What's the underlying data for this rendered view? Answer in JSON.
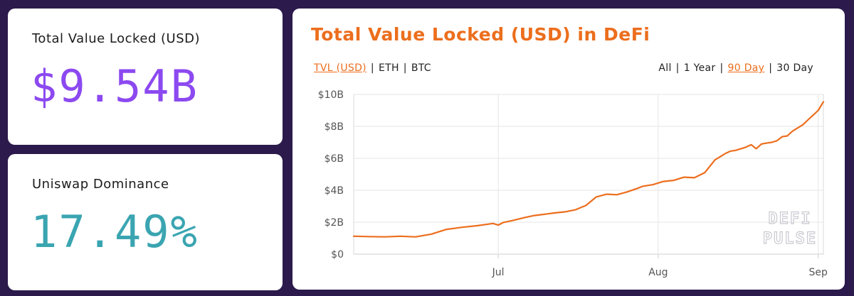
{
  "stats": {
    "tvl": {
      "label": "Total Value Locked (USD)",
      "value": "$9.54B"
    },
    "dominance": {
      "label": "Uniswap Dominance",
      "value": "17.49%"
    }
  },
  "chart_panel": {
    "title": "Total Value Locked (USD) in DeFi",
    "currency_options": [
      "TVL (USD)",
      "ETH",
      "BTC"
    ],
    "currency_selected": "TVL (USD)",
    "range_options": [
      "All",
      "1 Year",
      "90 Day",
      "30 Day"
    ],
    "range_selected": "90 Day",
    "watermark": [
      "DEFI",
      "PULSE"
    ]
  },
  "colors": {
    "background": "#2b1a4b",
    "accent": "#ec6e1d",
    "tvl_value": "#8c49f0",
    "dominance_value": "#3aa5b1",
    "line": "#ec6e1d"
  },
  "chart_data": {
    "type": "line",
    "title": "Total Value Locked (USD) in DeFi",
    "xlabel": "",
    "ylabel": "",
    "y_ticks": [
      "$0",
      "$2B",
      "$4B",
      "$6B",
      "$8B",
      "$10B"
    ],
    "y_tick_values": [
      0,
      2,
      4,
      6,
      8,
      10
    ],
    "ylim": [
      0,
      10
    ],
    "x_ticks": [
      {
        "label": "Jul",
        "x": "2020-07-01"
      },
      {
        "label": "Aug",
        "x": "2020-08-01"
      },
      {
        "label": "Sep",
        "x": "2020-09-01"
      }
    ],
    "xlim": [
      "2020-06-03",
      "2020-09-02"
    ],
    "grid": true,
    "series": [
      {
        "x": [
          "2020-06-03",
          "2020-06-06",
          "2020-06-09",
          "2020-06-12",
          "2020-06-15",
          "2020-06-18",
          "2020-06-21",
          "2020-06-24",
          "2020-06-27",
          "2020-06-30",
          "2020-07-01",
          "2020-07-02",
          "2020-07-04",
          "2020-07-06",
          "2020-07-08",
          "2020-07-10",
          "2020-07-12",
          "2020-07-14",
          "2020-07-16",
          "2020-07-18",
          "2020-07-20",
          "2020-07-22",
          "2020-07-24",
          "2020-07-26",
          "2020-07-28",
          "2020-07-29",
          "2020-07-31",
          "2020-08-02",
          "2020-08-04",
          "2020-08-06",
          "2020-08-08",
          "2020-08-10",
          "2020-08-12",
          "2020-08-14",
          "2020-08-15",
          "2020-08-16",
          "2020-08-18",
          "2020-08-19",
          "2020-08-20",
          "2020-08-21",
          "2020-08-22",
          "2020-08-23",
          "2020-08-24",
          "2020-08-25",
          "2020-08-26",
          "2020-08-27",
          "2020-08-28",
          "2020-08-29",
          "2020-08-30",
          "2020-08-31",
          "2020-09-01",
          "2020-09-02"
        ],
        "values": [
          1.12,
          1.1,
          1.08,
          1.12,
          1.08,
          1.25,
          1.55,
          1.68,
          1.78,
          1.92,
          1.82,
          1.98,
          2.12,
          2.28,
          2.42,
          2.5,
          2.58,
          2.65,
          2.78,
          3.05,
          3.58,
          3.75,
          3.72,
          3.9,
          4.12,
          4.25,
          4.35,
          4.55,
          4.62,
          4.82,
          4.78,
          5.1,
          5.9,
          6.3,
          6.45,
          6.5,
          6.7,
          6.85,
          6.6,
          6.9,
          6.95,
          7.0,
          7.1,
          7.35,
          7.4,
          7.7,
          7.9,
          8.1,
          8.4,
          8.7,
          9.0,
          9.54
        ]
      }
    ]
  }
}
